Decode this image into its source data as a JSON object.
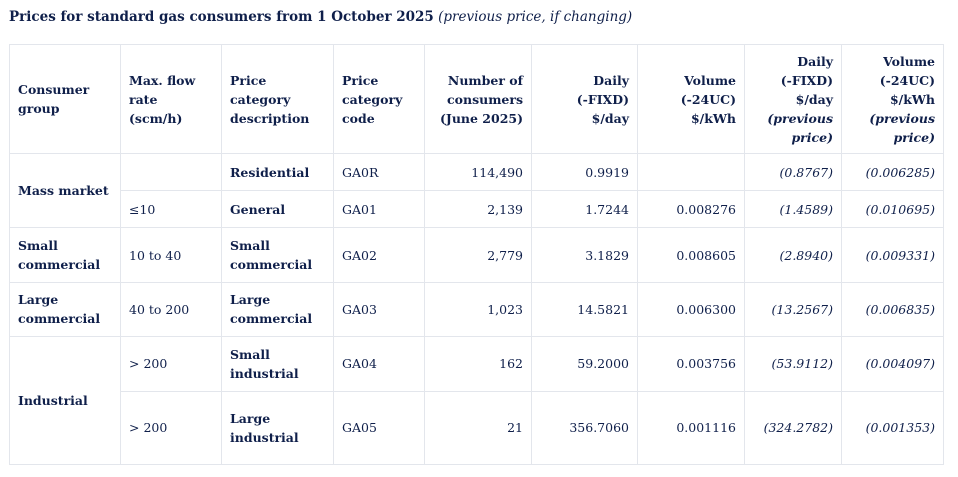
{
  "title": {
    "main": "Prices for standard gas consumers from 1 October 2025",
    "note": "(previous price, if changing)"
  },
  "headers": {
    "consumer_group": [
      "Consumer",
      "group"
    ],
    "max_flow": [
      "Max. flow",
      "rate",
      "(scm/h)"
    ],
    "category_description": [
      "Price",
      "category",
      "description"
    ],
    "category_code": [
      "Price",
      "category",
      "code"
    ],
    "num_consumers": [
      "Number of",
      "consumers",
      "(June 2025)"
    ],
    "daily": [
      "Daily",
      "(-FIXD)",
      "$/day"
    ],
    "volume": [
      "Volume",
      "(-24UC)",
      "$/kWh"
    ],
    "daily_prev": [
      "Daily",
      "(-FIXD)",
      "$/day",
      "(previous",
      "price)"
    ],
    "volume_prev": [
      "Volume",
      "(-24UC)",
      "$/kWh",
      "(previous",
      "price)"
    ]
  },
  "groups": {
    "mass_market": "Mass market",
    "small_commercial": [
      "Small",
      "commercial"
    ],
    "large_commercial": [
      "Large",
      "commercial"
    ],
    "industrial": "Industrial"
  },
  "rows": [
    {
      "max_flow": "",
      "description": [
        "Residential"
      ],
      "code": "GA0R",
      "consumers": "114,490",
      "daily": "0.9919",
      "volume": "",
      "daily_prev": "(0.8767)",
      "volume_prev": "(0.006285)"
    },
    {
      "max_flow": "≤10",
      "description": [
        "General"
      ],
      "code": "GA01",
      "consumers": "2,139",
      "daily": "1.7244",
      "volume": "0.008276",
      "daily_prev": "(1.4589)",
      "volume_prev": "(0.010695)"
    },
    {
      "max_flow": "10 to 40",
      "description": [
        "Small",
        "commercial"
      ],
      "code": "GA02",
      "consumers": "2,779",
      "daily": "3.1829",
      "volume": "0.008605",
      "daily_prev": "(2.8940)",
      "volume_prev": "(0.009331)"
    },
    {
      "max_flow": "40 to 200",
      "description": [
        "Large",
        "commercial"
      ],
      "code": "GA03",
      "consumers": "1,023",
      "daily": "14.5821",
      "volume": "0.006300",
      "daily_prev": "(13.2567)",
      "volume_prev": "(0.006835)"
    },
    {
      "max_flow": "> 200",
      "description": [
        "Small",
        "industrial"
      ],
      "code": "GA04",
      "consumers": "162",
      "daily": "59.2000",
      "volume": "0.003756",
      "daily_prev": "(53.9112)",
      "volume_prev": "(0.004097)"
    },
    {
      "max_flow": "> 200",
      "description": [
        "Large",
        "industrial"
      ],
      "code": "GA05",
      "consumers": "21",
      "daily": "356.7060",
      "volume": "0.001116",
      "daily_prev": "(324.2782)",
      "volume_prev": "(0.001353)"
    }
  ]
}
